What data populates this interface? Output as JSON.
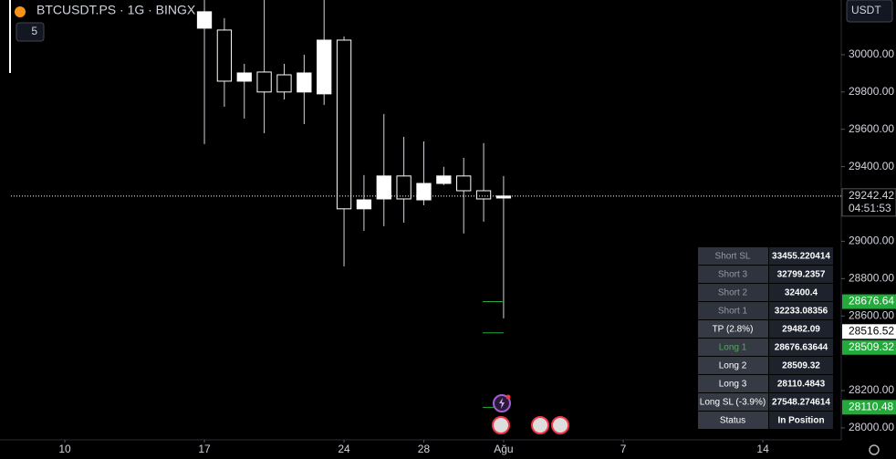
{
  "header": {
    "symbol": "BTCUSDT.PS · 1G · BINGX",
    "interval_badge": "5",
    "currency": "USDT"
  },
  "chart_data": {
    "type": "candlestick",
    "x": [
      17,
      18,
      19,
      20,
      21,
      22,
      23,
      24,
      25,
      26,
      27,
      28,
      29,
      30,
      31,
      32
    ],
    "open": [
      30142,
      30132,
      29858,
      29907,
      29892,
      29800,
      29790,
      30078,
      29174,
      29227,
      29350,
      29222,
      29310,
      29350,
      29271,
      29232
    ],
    "high": [
      30293,
      30196,
      29951,
      30293,
      29951,
      30000,
      30293,
      30098,
      29355,
      29682,
      29560,
      29535,
      29399,
      29447,
      29526,
      29350
    ],
    "low": [
      29521,
      29721,
      29658,
      29579,
      29760,
      29628,
      29731,
      28866,
      29056,
      29081,
      29100,
      29193,
      29301,
      29042,
      29105,
      28587
    ],
    "close": [
      30230,
      29858,
      29902,
      29800,
      29800,
      29902,
      30078,
      29174,
      29222,
      29350,
      29227,
      29310,
      29350,
      29271,
      29227,
      29242.42
    ],
    "up_color": "#ffffff",
    "down_color": "#000000",
    "xlim": [
      7.3,
      48.93
    ],
    "xticks": [
      10,
      17,
      24,
      28,
      {
        "value": 32,
        "label": "Ağu"
      },
      {
        "value": 38,
        "label": "7"
      },
      {
        "value": 45,
        "label": "14"
      }
    ],
    "ylim": [
      27936,
      30293
    ],
    "yticks": [
      {
        "value": 28000,
        "label": "28000.00"
      },
      {
        "value": 28200,
        "label": "28200.00"
      },
      {
        "value": 28600,
        "label": "28600.00"
      },
      {
        "value": 28800,
        "label": "28800.00"
      },
      {
        "value": 29000,
        "label": "29000.00"
      },
      {
        "value": 29400,
        "label": "29400.00"
      },
      {
        "value": 29600,
        "label": "29600.00"
      },
      {
        "value": 29800,
        "label": "29800.00"
      },
      {
        "value": 30000,
        "label": "30000.00"
      }
    ],
    "current_price": 29242.42,
    "countdown": "04:51:53",
    "level_lines": [
      28676.64,
      28509.32,
      28110.48
    ],
    "level_color": "#22ab3a",
    "price_labels": [
      28676.64,
      28516.52,
      28509.32,
      28110.48
    ]
  },
  "panel": {
    "rows": [
      [
        "Short SL",
        "33455.220414"
      ],
      [
        "Short 3",
        "32799.2357"
      ],
      [
        "Short 2",
        "32400.4"
      ],
      [
        "Short 1",
        "32233.08356"
      ],
      [
        "TP (2.8%)",
        "29482.09"
      ],
      [
        "Long 1",
        "28676.63644"
      ],
      [
        "Long 2",
        "28509.32"
      ],
      [
        "Long 3",
        "28110.4843"
      ],
      [
        "Long SL (-3.9%)",
        "27548.274614"
      ],
      [
        "Status",
        "In Position"
      ]
    ]
  }
}
